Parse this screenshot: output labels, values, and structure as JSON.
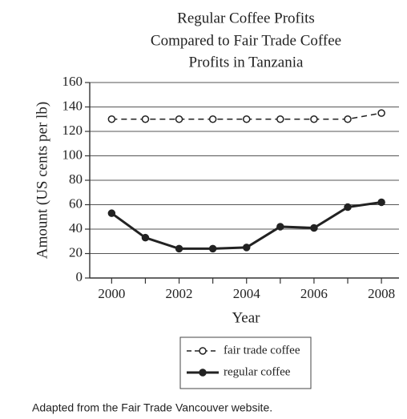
{
  "chart_data": {
    "type": "line",
    "title": [
      "Regular Coffee Profits",
      "Compared to Fair Trade Coffee",
      "Profits in Tanzania"
    ],
    "x_label": "Year",
    "y_label": "Amount (US cents per lb)",
    "x": [
      2000,
      2001,
      2002,
      2003,
      2004,
      2005,
      2006,
      2007,
      2008
    ],
    "series": [
      {
        "name": "fair trade coffee",
        "color": "#222222",
        "dashed": true,
        "marker": "open",
        "values": [
          130,
          130,
          130,
          130,
          130,
          130,
          130,
          130,
          135
        ]
      },
      {
        "name": "regular coffee",
        "color": "#222222",
        "dashed": false,
        "marker": "filled",
        "values": [
          53,
          33,
          24,
          24,
          25,
          42,
          41,
          58,
          62
        ]
      }
    ],
    "xlim": [
      1999.35,
      2008.52
    ],
    "xticks": [
      2000,
      2002,
      2004,
      2006,
      2008
    ],
    "xminor_ticks": [
      2001,
      2003,
      2005,
      2007
    ],
    "ylim": [
      0,
      160
    ],
    "yticks": [
      0,
      20,
      40,
      60,
      80,
      100,
      120,
      140,
      160
    ],
    "grid": true,
    "legend": "bottom",
    "source": "Adapted from the Fair Trade Vancouver website."
  }
}
